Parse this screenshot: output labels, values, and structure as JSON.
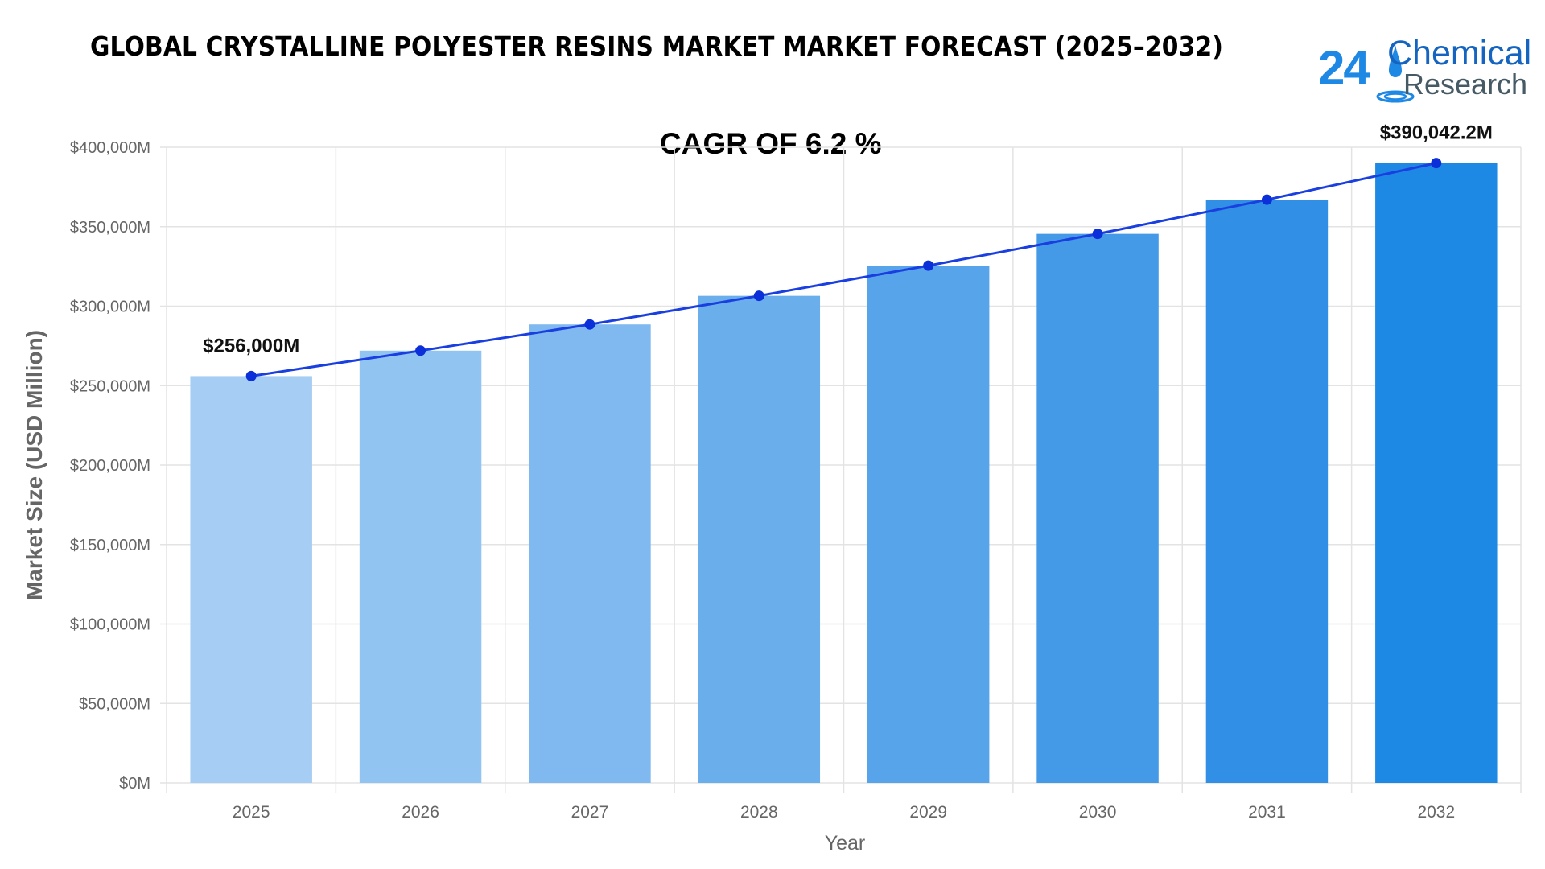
{
  "header": {
    "title": "GLOBAL CRYSTALLINE POLYESTER RESINS MARKET MARKET FORECAST (2025–2032)",
    "cagr_label": "CAGR OF 6.2 %"
  },
  "logo": {
    "number": "24",
    "line1": "Chemical",
    "line2": "Research",
    "color_primary": "#1e88e5",
    "color_secondary": "#455a64"
  },
  "chart_data": {
    "type": "bar",
    "categories": [
      "2025",
      "2026",
      "2027",
      "2028",
      "2029",
      "2030",
      "2031",
      "2032"
    ],
    "values": [
      256000,
      272000,
      288500,
      306500,
      325500,
      345500,
      367000,
      390042.2
    ],
    "overlay_line": true,
    "xlabel": "Year",
    "ylabel": "Market Size (USD Million)",
    "ylim": [
      0,
      400000
    ],
    "yticks": [
      "$0M",
      "$50,000M",
      "$100,000M",
      "$150,000M",
      "$200,000M",
      "$250,000M",
      "$300,000M",
      "$350,000M",
      "$400,000M"
    ],
    "ytick_values": [
      0,
      50000,
      100000,
      150000,
      200000,
      250000,
      300000,
      350000,
      400000
    ],
    "data_labels": [
      {
        "index": 0,
        "text": "$256,000M"
      },
      {
        "index": 7,
        "text": "$390,042.2M"
      }
    ],
    "grid": true,
    "legend": "none",
    "bar_colors": [
      "#a6cdf3",
      "#92c4f2",
      "#7fb9ef",
      "#6aaeec",
      "#57a4ea",
      "#449ae7",
      "#3190e5",
      "#1e88e5"
    ],
    "line_color": "#1a3fe0",
    "point_color": "#0b2fd8"
  }
}
